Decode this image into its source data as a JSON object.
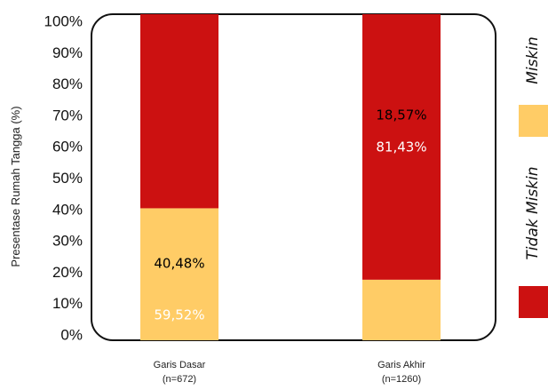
{
  "chart_data": {
    "type": "bar",
    "stacked": true,
    "ylabel": "Presentase Rumah Tangga (%)",
    "ylim": [
      0,
      100
    ],
    "yticks": [
      "0%",
      "10%",
      "20%",
      "30%",
      "40%",
      "50%",
      "60%",
      "70%",
      "80%",
      "90%",
      "100%"
    ],
    "categories": [
      {
        "name": "Garis Dasar",
        "n": "(n=672)"
      },
      {
        "name": "Garis Akhir",
        "n": "(n=1260)"
      }
    ],
    "series": [
      {
        "name": "Miskin",
        "color": "#FFCC66",
        "label_color": "#000000",
        "values": [
          40.48,
          18.57
        ],
        "labels": [
          "40,48%",
          "18,57%"
        ]
      },
      {
        "name": "Tidak Miskin",
        "color": "#CC1111",
        "label_color": "#FFFFFF",
        "values": [
          59.52,
          81.43
        ],
        "labels": [
          "59,52%",
          "81,43%"
        ]
      }
    ],
    "legend": {
      "position": "right",
      "orientation": "vertical"
    },
    "grid": false
  }
}
